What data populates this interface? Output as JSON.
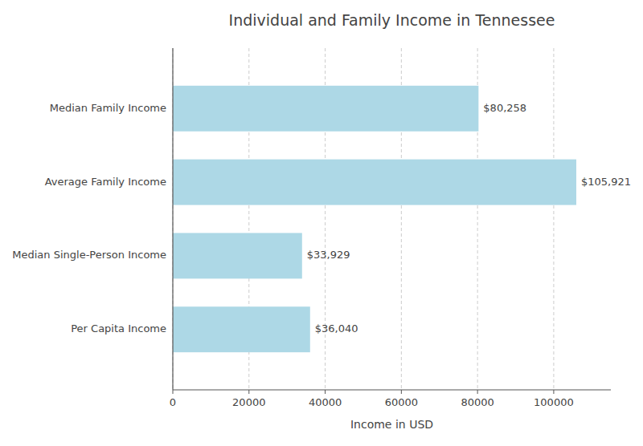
{
  "chart_data": {
    "type": "bar",
    "orientation": "horizontal",
    "title": "Individual and Family Income in Tennessee",
    "categories": [
      "Per Capita Income",
      "Median Single-Person Income",
      "Average Family Income",
      "Median Family Income"
    ],
    "values": [
      36040,
      33929,
      105921,
      80258
    ],
    "value_labels": [
      "$36,040",
      "$33,929",
      "$105,921",
      "$80,258"
    ],
    "data_labels": true,
    "color": "#add8e6",
    "xlabel": "Income in USD",
    "xlim": [
      0,
      115000
    ],
    "xticks": [
      0,
      20000,
      40000,
      60000,
      80000,
      100000
    ],
    "grid": true
  }
}
